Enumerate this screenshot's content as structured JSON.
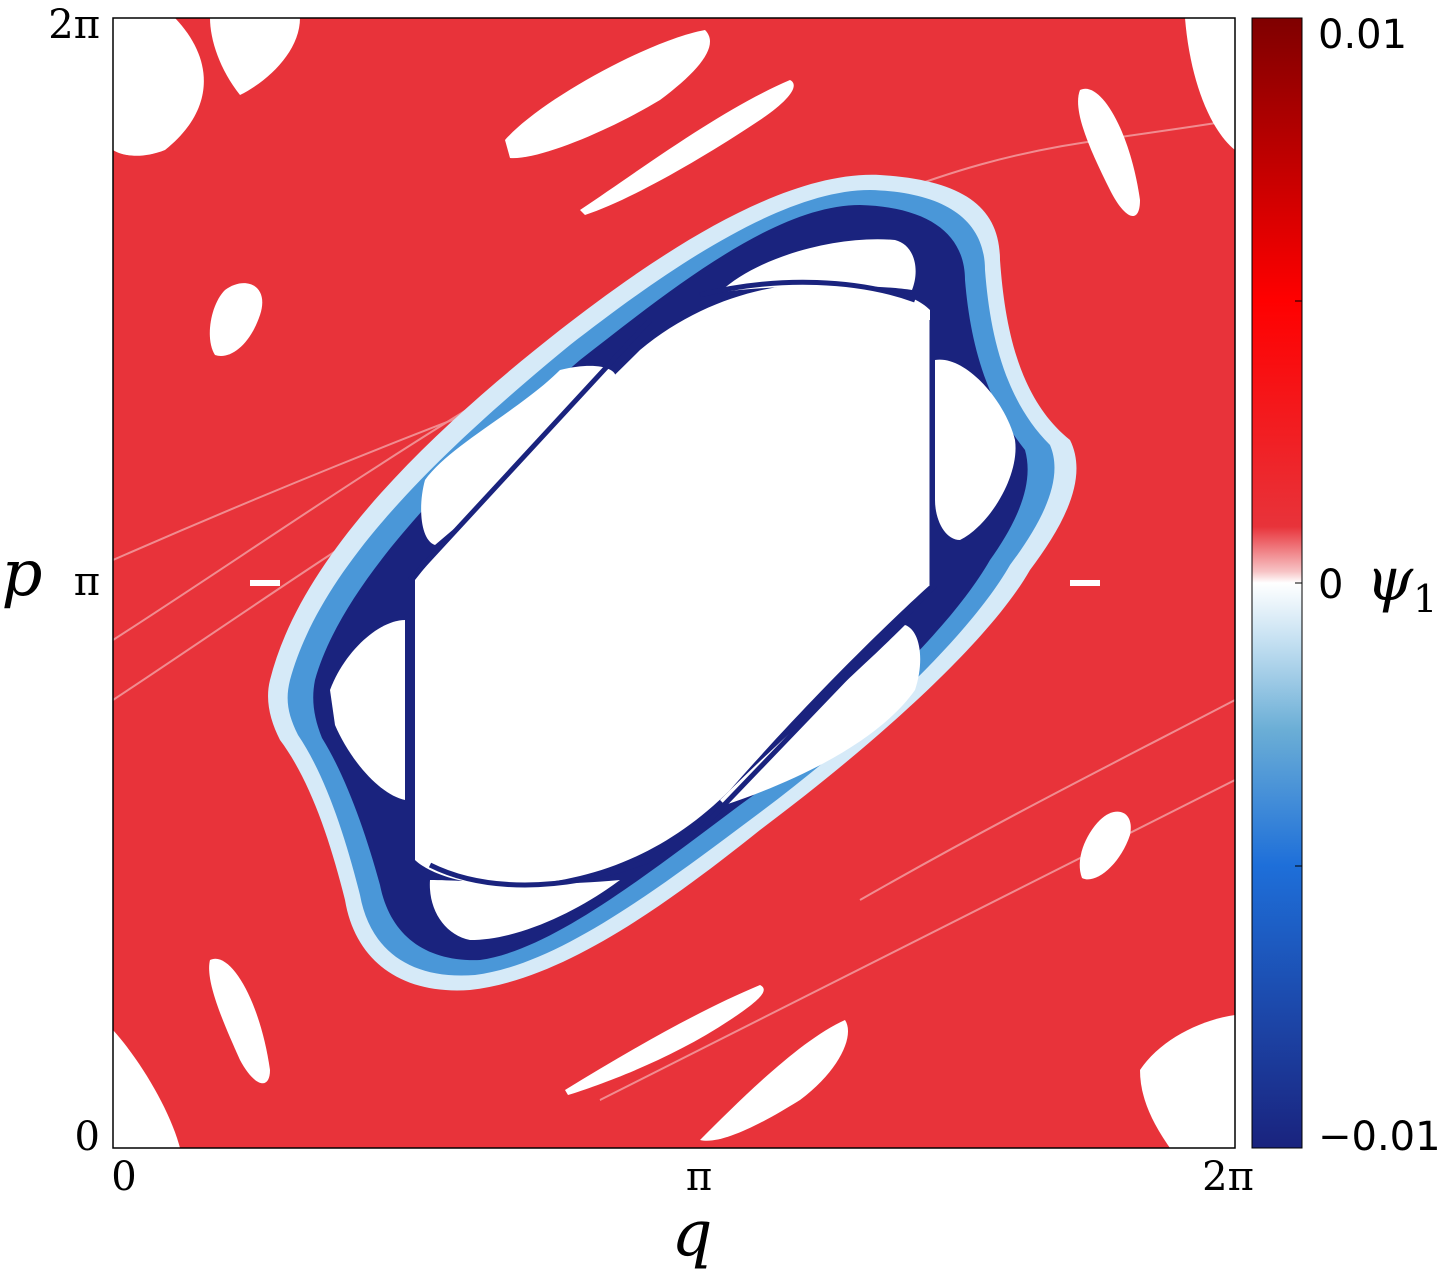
{
  "chart_data": {
    "type": "heatmap",
    "title": "",
    "xlabel": "q",
    "ylabel": "p",
    "xlim": [
      "0",
      "2π"
    ],
    "ylim": [
      "0",
      "2π"
    ],
    "x_ticks": [
      "0",
      "π",
      "2π"
    ],
    "y_ticks": [
      "0",
      "π",
      "2π"
    ],
    "grid": false,
    "colorbar": {
      "label": "ψ1",
      "label_base": "ψ",
      "label_sub": "1",
      "min": -0.01,
      "max": 0.01,
      "ticks": [
        "0.01",
        "0",
        "−0.01"
      ],
      "colormap": "blue-white-red diverging",
      "colors": {
        "max": "#7f0000",
        "high": "#ff0000",
        "positive": "#e8333a",
        "zero": "#ffffff",
        "light_negative": "#9ecae1",
        "negative": "#1e6fd9",
        "min": "#1a237e"
      }
    },
    "regions": [
      {
        "name": "background chaotic sea",
        "value": 0.0035
      },
      {
        "name": "central elliptic island",
        "value": 0
      },
      {
        "name": "boundary layer around central island",
        "value": -0.01
      },
      {
        "name": "small elliptic islands",
        "value": 0
      }
    ]
  }
}
